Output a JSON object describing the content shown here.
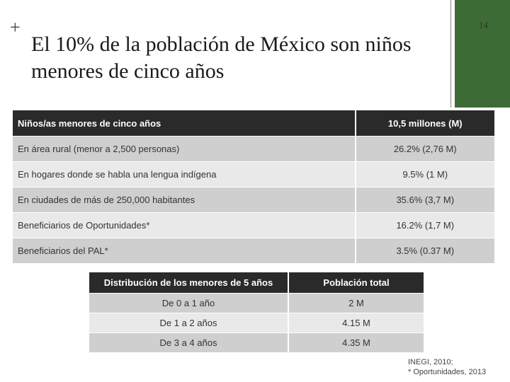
{
  "slide": {
    "page_number": "14",
    "title": "El 10% de la población de México son niños menores de cinco años",
    "accent_color": "#3d6b35"
  },
  "table_main": {
    "header": {
      "label": "Niños/as menores de cinco años",
      "value": "10,5 millones (M)"
    },
    "rows": [
      {
        "label": "En área rural (menor a 2,500 personas)",
        "value": "26.2% (2,76 M)"
      },
      {
        "label": "En hogares donde se habla una lengua indígena",
        "value": "9.5% (1 M)"
      },
      {
        "label": "En ciudades de más de 250,000 habitantes",
        "value": "35.6% (3,7 M)"
      },
      {
        "label": "Beneficiarios de Oportunidades*",
        "value": "16.2% (1,7 M)"
      },
      {
        "label": "Beneficiarios del PAL*",
        "value": "3.5% (0.37 M)"
      }
    ]
  },
  "table_distribution": {
    "header": {
      "label": "Distribución de los menores de 5 años",
      "value": "Población total"
    },
    "rows": [
      {
        "label": "De 0 a 1 año",
        "value": "2 M"
      },
      {
        "label": "De 1 a 2 años",
        "value": "4.15 M"
      },
      {
        "label": "De 3 a 4 años",
        "value": "4.35 M"
      }
    ]
  },
  "source": {
    "line1": "INEGI, 2010;",
    "line2": "* Oportunidades, 2013"
  }
}
